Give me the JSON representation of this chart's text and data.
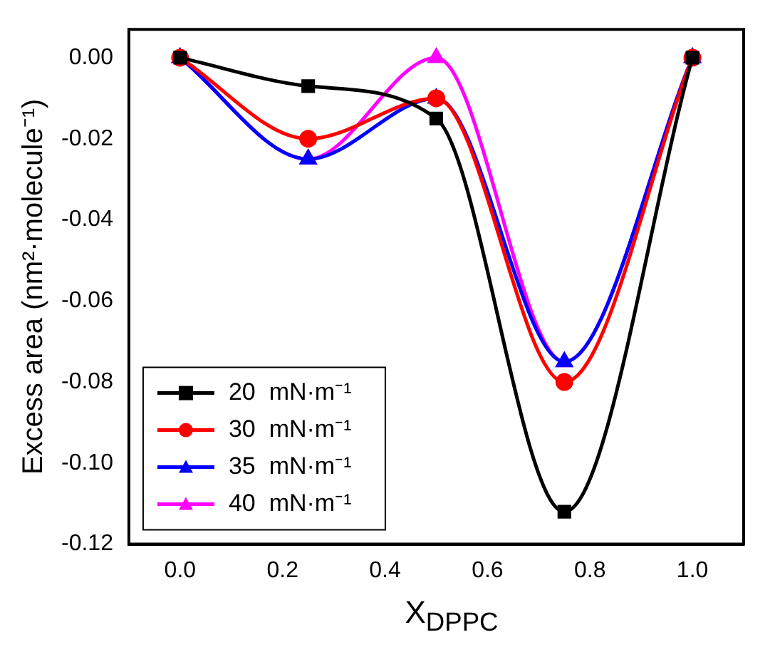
{
  "chart_data": {
    "type": "line",
    "xlabel": "X$_{DPPC}$",
    "ylabel": "Excess area (nm²·molecule⁻¹)",
    "x": [
      0,
      0.25,
      0.5,
      0.75,
      1.0
    ],
    "series": [
      {
        "name": "20  mN·m⁻¹",
        "color": "#000000",
        "marker": "square",
        "values": [
          0,
          -0.007,
          -0.015,
          -0.112,
          0
        ]
      },
      {
        "name": "30  mN·m⁻¹",
        "color": "#ff0000",
        "marker": "circle",
        "values": [
          0,
          -0.02,
          -0.01,
          -0.08,
          0
        ]
      },
      {
        "name": "35  mN·m⁻¹",
        "color": "#0000ff",
        "marker": "triangle",
        "values": [
          0,
          -0.025,
          -0.01,
          -0.075,
          0
        ]
      },
      {
        "name": "40  mN·m⁻¹",
        "color": "#ff00ff",
        "marker": "triangle",
        "values": [
          0,
          -0.025,
          0.0,
          -0.075,
          0
        ]
      }
    ],
    "xlim": [
      -0.1,
      1.1
    ],
    "xticks": [
      {
        "value": 0,
        "label": "0.0"
      },
      0.2,
      0.4,
      0.6,
      0.8,
      {
        "value": 1,
        "label": "1.0"
      }
    ],
    "ylim": [
      -0.12,
      0.007
    ],
    "yticks": [
      -0.12,
      {
        "value": -0.1,
        "label": "-0.10"
      },
      -0.08,
      -0.06,
      -0.04,
      -0.02,
      {
        "value": 0,
        "label": "0.00"
      }
    ],
    "legend": "bottom left",
    "grid": false
  }
}
